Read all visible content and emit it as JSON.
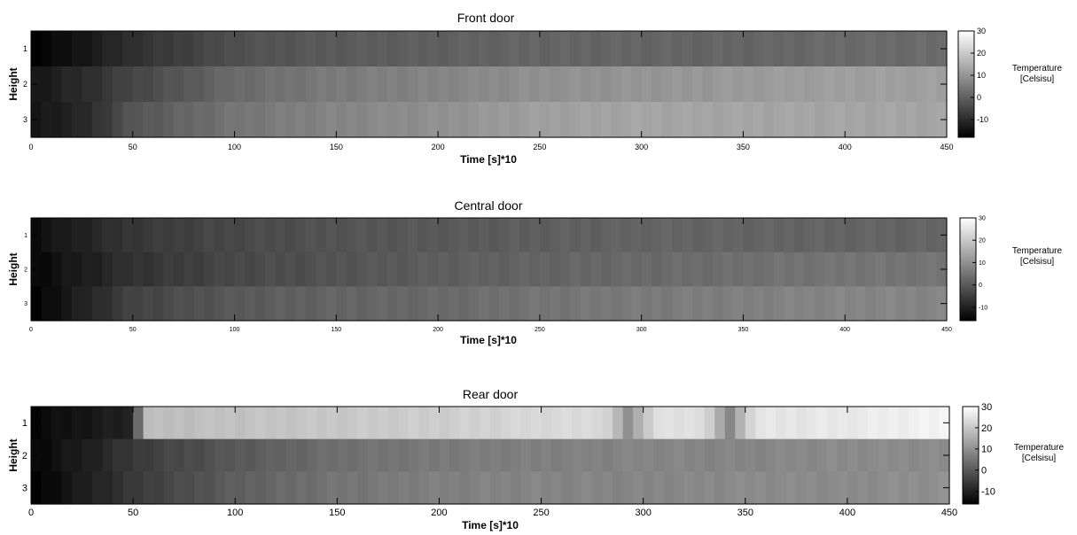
{
  "chart_data": [
    {
      "type": "heatmap",
      "title": "Front door",
      "xlabel": "Time [s]*10",
      "ylabel": "Height",
      "xlim": [
        0,
        450
      ],
      "xticks": [
        0,
        50,
        100,
        150,
        200,
        250,
        300,
        350,
        400,
        450
      ],
      "rows": [
        1,
        2,
        3
      ],
      "colorbar": {
        "label_line1": "Temperature",
        "label_line2": "[Celsisu]",
        "range": [
          -18,
          30
        ],
        "ticks": [
          30,
          20,
          10,
          0,
          -10
        ]
      },
      "profile": [
        {
          "t": 0,
          "values": [
            -18,
            -14,
            -14
          ]
        },
        {
          "t": 25,
          "values": [
            -14,
            -10,
            -11
          ]
        },
        {
          "t": 50,
          "values": [
            -9,
            -5,
            -2
          ]
        },
        {
          "t": 100,
          "values": [
            -3,
            2,
            4
          ]
        },
        {
          "t": 150,
          "values": [
            -1,
            5,
            7
          ]
        },
        {
          "t": 200,
          "values": [
            0,
            7,
            9
          ]
        },
        {
          "t": 250,
          "values": [
            1,
            9,
            12
          ]
        },
        {
          "t": 300,
          "values": [
            1,
            10,
            13
          ]
        },
        {
          "t": 350,
          "values": [
            1,
            11,
            13
          ]
        },
        {
          "t": 400,
          "values": [
            2,
            12,
            13
          ]
        },
        {
          "t": 450,
          "values": [
            2,
            12,
            13
          ]
        }
      ]
    },
    {
      "type": "heatmap",
      "title": "Central door",
      "xlabel": "Time [s]*10",
      "ylabel": "Height",
      "xlim": [
        0,
        450
      ],
      "xticks": [
        0,
        50,
        100,
        150,
        200,
        250,
        300,
        350,
        400,
        450
      ],
      "rows": [
        1,
        2,
        3
      ],
      "colorbar": {
        "label_line1": "Temperature",
        "label_line2": "[Celsisu]",
        "range": [
          -16,
          30
        ],
        "ticks": [
          30,
          20,
          10,
          0,
          -10
        ]
      },
      "profile": [
        {
          "t": 0,
          "values": [
            -14,
            -15,
            -16
          ]
        },
        {
          "t": 25,
          "values": [
            -10,
            -11,
            -10
          ]
        },
        {
          "t": 50,
          "values": [
            -6,
            -7,
            -4
          ]
        },
        {
          "t": 100,
          "values": [
            -3,
            -3,
            0
          ]
        },
        {
          "t": 150,
          "values": [
            -1,
            -1,
            2
          ]
        },
        {
          "t": 200,
          "values": [
            0,
            1,
            3
          ]
        },
        {
          "t": 250,
          "values": [
            1,
            2,
            5
          ]
        },
        {
          "t": 300,
          "values": [
            2,
            3,
            6
          ]
        },
        {
          "t": 350,
          "values": [
            2,
            4,
            7
          ]
        },
        {
          "t": 400,
          "values": [
            2,
            5,
            8
          ]
        },
        {
          "t": 450,
          "values": [
            2,
            5,
            8
          ]
        }
      ]
    },
    {
      "type": "heatmap",
      "title": "Rear door",
      "xlabel": "Time [s]*10",
      "ylabel": "Height",
      "xlim": [
        0,
        450
      ],
      "xticks": [
        0,
        50,
        100,
        150,
        200,
        250,
        300,
        350,
        400,
        450
      ],
      "rows": [
        1,
        2,
        3
      ],
      "colorbar": {
        "label_line1": "Temperature",
        "label_line2": "[Celsisu]",
        "range": [
          -16,
          30
        ],
        "ticks": [
          30,
          20,
          10,
          0,
          -10
        ]
      },
      "profile": [
        {
          "t": 0,
          "values": [
            -15,
            -15,
            -16
          ]
        },
        {
          "t": 25,
          "values": [
            -12,
            -11,
            -11
          ]
        },
        {
          "t": 50,
          "values": [
            -10,
            -6,
            -6
          ]
        },
        {
          "t": 55,
          "values": [
            18,
            -5,
            -5
          ]
        },
        {
          "t": 100,
          "values": [
            19,
            0,
            1
          ]
        },
        {
          "t": 150,
          "values": [
            20,
            4,
            5
          ]
        },
        {
          "t": 200,
          "values": [
            21,
            6,
            7
          ]
        },
        {
          "t": 250,
          "values": [
            23,
            7,
            8
          ]
        },
        {
          "t": 300,
          "values": [
            24,
            8,
            8
          ]
        },
        {
          "t": 350,
          "values": [
            25,
            8,
            9
          ]
        },
        {
          "t": 400,
          "values": [
            26,
            9,
            9
          ]
        },
        {
          "t": 450,
          "values": [
            28,
            9,
            10
          ]
        }
      ],
      "dips": [
        {
          "row": 1,
          "t": 293,
          "value": 10
        },
        {
          "row": 1,
          "t": 342,
          "value": 8
        }
      ]
    }
  ]
}
